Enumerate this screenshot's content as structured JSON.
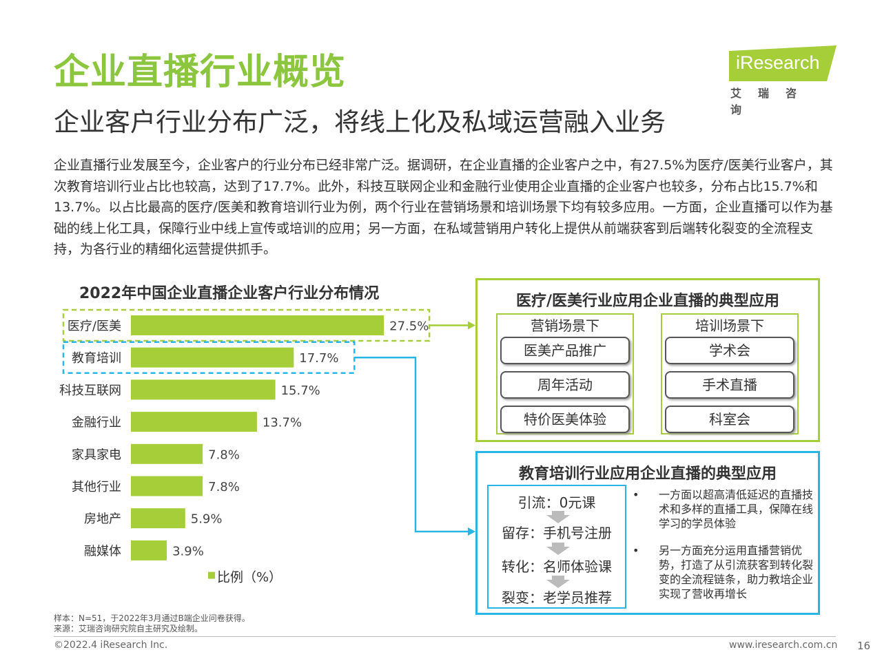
{
  "header": {
    "title": "企业直播行业概览",
    "subtitle": "企业客户行业分布广泛，将线上化及私域运营融入业务",
    "intro": "企业直播行业发展至今，企业客户的行业分布已经非常广泛。据调研，在企业直播的企业客户之中，有27.5%为医疗/医美行业客户，其次教育培训行业占比也较高，达到了17.7%。此外，科技互联网企业和金融行业使用企业直播的企业客户也较多，分布占比15.7%和13.7%。以占比最高的医疗/医美和教育培训行业为例，两个行业在营销场景和培训场景下均有较多应用。一方面，企业直播可以作为基础的线上化工具，保障行业中线上宣传或培训的应用；另一方面，在私域营销用户转化上提供从前端获客到后端转化裂变的全流程支持，为各行业的精细化运营提供抓手。"
  },
  "logo": {
    "text": "iResearch",
    "cn": "艾瑞咨询",
    "color": "#a6ce39"
  },
  "chart_data": {
    "type": "bar",
    "orientation": "horizontal",
    "title": "2022年中国企业直播企业客户行业分布情况",
    "categories": [
      "医疗/医美",
      "教育培训",
      "科技互联网",
      "金融行业",
      "家具家电",
      "其他行业",
      "房地产",
      "融媒体"
    ],
    "values": [
      27.5,
      17.7,
      15.7,
      13.7,
      7.8,
      7.8,
      5.9,
      3.9
    ],
    "value_labels": [
      "27.5%",
      "17.7%",
      "15.7%",
      "13.7%",
      "7.8%",
      "7.8%",
      "5.9%",
      "3.9%"
    ],
    "legend": "比例（%）",
    "legend_position": "bottom",
    "grid": false,
    "bar_color": "#a6ce39",
    "highlight_colors": {
      "医疗/医美": "#a6ce39",
      "教育培训": "#29b6e6"
    }
  },
  "panel_medical": {
    "title": "医疗/医美行业应用企业直播的典型应用",
    "marketing": {
      "label": "营销场景下",
      "items": [
        "医美产品推广",
        "周年活动",
        "特价医美体验"
      ]
    },
    "training": {
      "label": "培训场景下",
      "items": [
        "学术会",
        "手术直播",
        "科室会"
      ]
    }
  },
  "panel_education": {
    "title": "教育培训行业应用企业直播的典型应用",
    "flow": [
      "引流：0元课",
      "留存：手机号注册",
      "转化：名师体验课",
      "裂变：老学员推荐"
    ],
    "bullet_marker": "•",
    "bullets": [
      "一方面以超高清低延迟的直播技术和多样的直播工具，保障在线学习的学员体验",
      "另一方面充分运用直播营销优势，打造了从引流获客到转化裂变的全流程链条，助力教培企业实现了营收再增长"
    ]
  },
  "notes": {
    "sample": "样本：N=51，于2022年3月通过B端企业问卷获得。",
    "source": "来源：艾瑞咨询研究院自主研究及绘制。"
  },
  "footer": {
    "copyright": "©2022.4 iResearch Inc.",
    "website": "www.iresearch.com.cn",
    "page": "16"
  }
}
